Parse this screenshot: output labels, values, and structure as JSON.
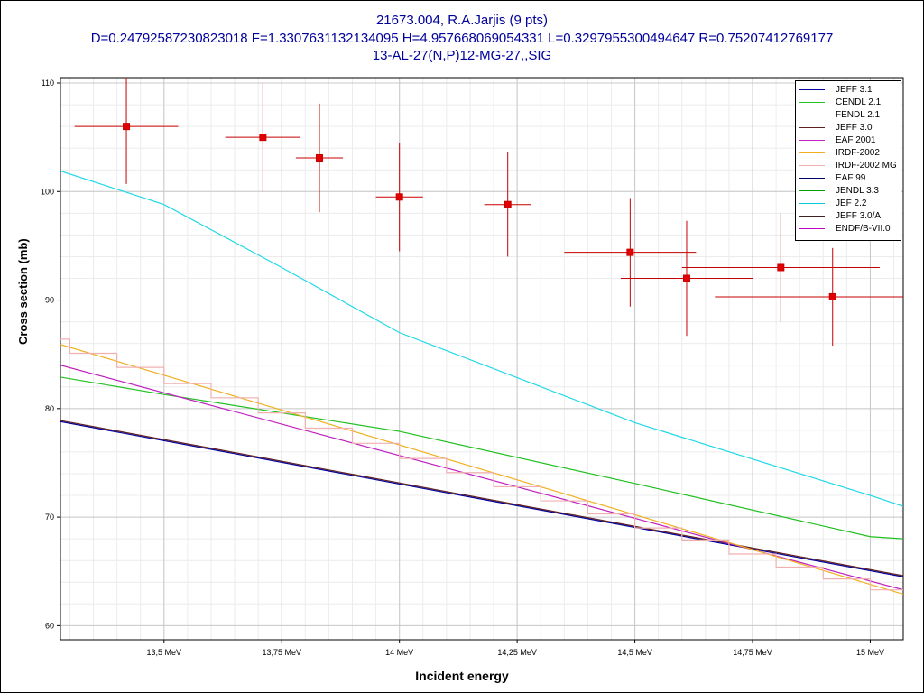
{
  "title": {
    "line1": "21673.004, R.A.Jarjis (9 pts)",
    "line2": "D=0.24792587230823018 F=1.3307631132134095 H=4.957668069054331 L=0.3297955300494647 R=0.75207412769177",
    "line3": "13-AL-27(N,P)12-MG-27,,SIG"
  },
  "chart_data": {
    "type": "line",
    "xlabel": "Incident energy",
    "ylabel": "Cross section (mb)",
    "xlim": [
      13.28,
      15.07
    ],
    "ylim": [
      58.7,
      110.5
    ],
    "xticks": [
      13.5,
      13.75,
      14.0,
      14.25,
      14.5,
      14.75,
      15.0
    ],
    "xtick_labels": [
      "13,5 MeV",
      "13,75 MeV",
      "14 MeV",
      "14,25 MeV",
      "14,5 MeV",
      "14,75 MeV",
      "15 MeV"
    ],
    "yticks": [
      60,
      70,
      80,
      90,
      100,
      110
    ],
    "ytick_labels": [
      "60",
      "70",
      "80",
      "90",
      "100",
      "110"
    ],
    "grid": true,
    "legend_position": "top-right",
    "series": [
      {
        "name": "JEFF 3.1",
        "color": "#0000a0",
        "style": "line",
        "x": [
          13.28,
          15.07
        ],
        "y": [
          78.8,
          64.5
        ]
      },
      {
        "name": "CENDL 2.1",
        "color": "#20c020",
        "style": "line",
        "x": [
          13.28,
          13.5,
          14.0,
          14.5,
          15.0,
          15.07
        ],
        "y": [
          82.9,
          81.3,
          77.9,
          73.1,
          68.2,
          68.0
        ]
      },
      {
        "name": "FENDL 2.1",
        "color": "#20d8e8",
        "style": "line",
        "x": [
          13.28,
          13.5,
          13.75,
          14.0,
          14.5,
          15.0,
          15.07
        ],
        "y": [
          101.9,
          98.8,
          93.0,
          87.0,
          78.7,
          72.0,
          71.0
        ]
      },
      {
        "name": "JEFF 3.0",
        "color": "#602020",
        "style": "line",
        "x": [
          13.28,
          15.07
        ],
        "y": [
          78.9,
          64.6
        ]
      },
      {
        "name": "EAF 2001",
        "color": "#c020c0",
        "style": "line",
        "x": [
          13.28,
          15.07
        ],
        "y": [
          84.0,
          63.3
        ]
      },
      {
        "name": "IRDF-2002",
        "color": "#f0b020",
        "style": "line",
        "x": [
          13.28,
          15.07
        ],
        "y": [
          85.9,
          62.9
        ]
      },
      {
        "name": "IRDF-2002 MG",
        "color": "#f0b0b0",
        "style": "step",
        "x": [
          13.28,
          13.3,
          13.4,
          13.5,
          13.6,
          13.7,
          13.8,
          13.9,
          14.0,
          14.1,
          14.2,
          14.3,
          14.4,
          14.5,
          14.6,
          14.7,
          14.8,
          14.9,
          15.0,
          15.07
        ],
        "y": [
          86.4,
          85.1,
          83.8,
          82.3,
          81.0,
          79.6,
          78.2,
          76.8,
          75.4,
          74.1,
          72.8,
          71.5,
          70.3,
          69.0,
          67.9,
          66.6,
          65.4,
          64.3,
          63.3,
          63.3
        ]
      },
      {
        "name": "EAF 99",
        "color": "#000060",
        "style": "hidden",
        "x": [],
        "y": []
      },
      {
        "name": "JENDL 3.3",
        "color": "#00a000",
        "style": "hidden",
        "x": [],
        "y": []
      },
      {
        "name": "JEF 2.2",
        "color": "#00c8d8",
        "style": "hidden",
        "x": [],
        "y": []
      },
      {
        "name": "JEFF 3.0/A",
        "color": "#402020",
        "style": "hidden",
        "x": [],
        "y": []
      },
      {
        "name": "ENDF/B-VII.0",
        "color": "#c000c0",
        "style": "hidden",
        "x": [],
        "y": []
      }
    ],
    "experimental": {
      "color": "#c80000",
      "points": [
        {
          "x": 13.42,
          "y": 106.0,
          "xerr": 0.11,
          "yerr": 5.3
        },
        {
          "x": 13.71,
          "y": 105.0,
          "xerr": 0.08,
          "yerr": 5.0
        },
        {
          "x": 13.83,
          "y": 103.1,
          "xerr": 0.05,
          "yerr": 5.0
        },
        {
          "x": 14.0,
          "y": 99.5,
          "xerr": 0.05,
          "yerr": 5.0
        },
        {
          "x": 14.23,
          "y": 98.8,
          "xerr": 0.05,
          "yerr": 4.8
        },
        {
          "x": 14.49,
          "y": 94.4,
          "xerr": 0.14,
          "yerr": 5.0
        },
        {
          "x": 14.61,
          "y": 92.0,
          "xerr": 0.14,
          "yerr": 5.3
        },
        {
          "x": 14.81,
          "y": 93.0,
          "xerr": 0.21,
          "yerr": 5.0
        },
        {
          "x": 14.92,
          "y": 90.3,
          "xerr": 0.25,
          "yerr": 4.5
        }
      ]
    }
  }
}
